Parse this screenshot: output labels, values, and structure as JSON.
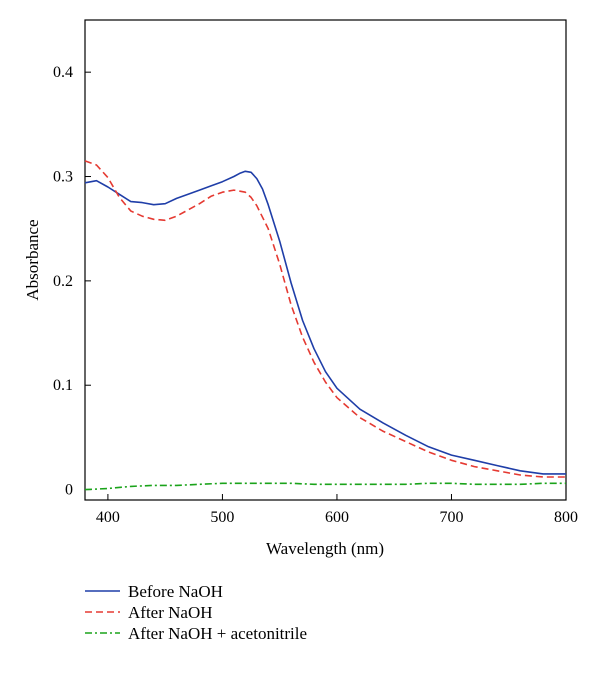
{
  "chart_data": {
    "type": "line",
    "title": "",
    "xlabel": "Wavelength (nm)",
    "ylabel": "Absorbance",
    "xlim": [
      380,
      800
    ],
    "ylim": [
      -0.01,
      0.45
    ],
    "xticks": [
      400,
      500,
      600,
      700,
      800
    ],
    "yticks": [
      0,
      0.1,
      0.2,
      0.3,
      0.4
    ],
    "xtick_labels": [
      "400",
      "500",
      "600",
      "700",
      "800"
    ],
    "ytick_labels": [
      "0",
      "0.1",
      "0.2",
      "0.3",
      "0.4"
    ],
    "grid": false,
    "legend_position": "bottom-left, below plot",
    "series": [
      {
        "name": "Before NaOH",
        "color": "#1f3ea8",
        "style": "solid",
        "x": [
          380,
          390,
          400,
          410,
          420,
          430,
          440,
          450,
          460,
          470,
          480,
          490,
          500,
          510,
          515,
          520,
          525,
          530,
          535,
          540,
          550,
          560,
          570,
          580,
          590,
          600,
          620,
          640,
          660,
          680,
          700,
          720,
          740,
          760,
          780,
          800
        ],
        "y": [
          0.294,
          0.296,
          0.29,
          0.283,
          0.276,
          0.275,
          0.273,
          0.274,
          0.279,
          0.283,
          0.287,
          0.291,
          0.295,
          0.3,
          0.303,
          0.305,
          0.304,
          0.298,
          0.288,
          0.273,
          0.238,
          0.198,
          0.162,
          0.135,
          0.113,
          0.097,
          0.077,
          0.064,
          0.052,
          0.041,
          0.033,
          0.028,
          0.023,
          0.018,
          0.015,
          0.015
        ]
      },
      {
        "name": "After NaOH",
        "color": "#e53a32",
        "style": "dashed",
        "x": [
          380,
          390,
          400,
          410,
          420,
          430,
          440,
          450,
          460,
          470,
          480,
          490,
          500,
          510,
          520,
          525,
          530,
          540,
          550,
          560,
          570,
          580,
          590,
          600,
          620,
          640,
          660,
          680,
          700,
          720,
          740,
          760,
          780,
          800
        ],
        "y": [
          0.315,
          0.311,
          0.299,
          0.28,
          0.267,
          0.262,
          0.259,
          0.258,
          0.262,
          0.268,
          0.274,
          0.281,
          0.285,
          0.287,
          0.285,
          0.28,
          0.272,
          0.25,
          0.216,
          0.177,
          0.146,
          0.122,
          0.103,
          0.088,
          0.069,
          0.056,
          0.046,
          0.036,
          0.028,
          0.022,
          0.018,
          0.014,
          0.012,
          0.012
        ]
      },
      {
        "name": "After NaOH + acetonitrile",
        "color": "#1aa31a",
        "style": "dashdot",
        "x": [
          380,
          400,
          420,
          440,
          460,
          480,
          500,
          520,
          540,
          560,
          580,
          600,
          620,
          640,
          660,
          680,
          700,
          720,
          740,
          760,
          780,
          800
        ],
        "y": [
          0.0,
          0.001,
          0.003,
          0.004,
          0.004,
          0.005,
          0.006,
          0.006,
          0.006,
          0.006,
          0.005,
          0.005,
          0.005,
          0.005,
          0.005,
          0.006,
          0.006,
          0.005,
          0.005,
          0.005,
          0.006,
          0.006
        ]
      }
    ]
  }
}
